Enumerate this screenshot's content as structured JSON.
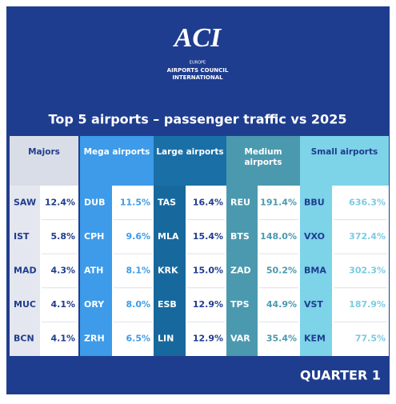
{
  "logo": {
    "mark": "ACI",
    "region": "EUROPE",
    "line1": "AIRPORTS COUNCIL",
    "line2": "INTERNATIONAL"
  },
  "header": {
    "title": "Top 5 airports – passenger traffic vs 2025"
  },
  "table": {
    "groups": [
      {
        "name": "Majors",
        "rows": [
          {
            "code": "SAW",
            "value": "12.4%"
          },
          {
            "code": "IST",
            "value": "5.8%"
          },
          {
            "code": "MAD",
            "value": "4.3%"
          },
          {
            "code": "MUC",
            "value": "4.1%"
          },
          {
            "code": "BCN",
            "value": "4.1%"
          }
        ]
      },
      {
        "name": "Mega airports",
        "rows": [
          {
            "code": "DUB",
            "value": "11.5%"
          },
          {
            "code": "CPH",
            "value": "9.6%"
          },
          {
            "code": "ATH",
            "value": "8.1%"
          },
          {
            "code": "ORY",
            "value": "8.0%"
          },
          {
            "code": "ZRH",
            "value": "6.5%"
          }
        ]
      },
      {
        "name": "Large airports",
        "rows": [
          {
            "code": "TAS",
            "value": "16.4%"
          },
          {
            "code": "MLA",
            "value": "15.4%"
          },
          {
            "code": "KRK",
            "value": "15.0%"
          },
          {
            "code": "ESB",
            "value": "12.9%"
          },
          {
            "code": "LIN",
            "value": "12.9%"
          }
        ]
      },
      {
        "name": "Medium airports",
        "rows": [
          {
            "code": "REU",
            "value": "191.4%"
          },
          {
            "code": "BTS",
            "value": "148.0%"
          },
          {
            "code": "ZAD",
            "value": "50.2%"
          },
          {
            "code": "TPS",
            "value": "44.9%"
          },
          {
            "code": "VAR",
            "value": "35.4%"
          }
        ]
      },
      {
        "name": "Small airports",
        "rows": [
          {
            "code": "BBU",
            "value": "636.3%"
          },
          {
            "code": "VXO",
            "value": "372.4%"
          },
          {
            "code": "BMA",
            "value": "302.3%"
          },
          {
            "code": "VST",
            "value": "187.9%"
          },
          {
            "code": "KEM",
            "value": "77.5%"
          }
        ]
      }
    ]
  },
  "footer": {
    "label": "QUARTER 1"
  }
}
